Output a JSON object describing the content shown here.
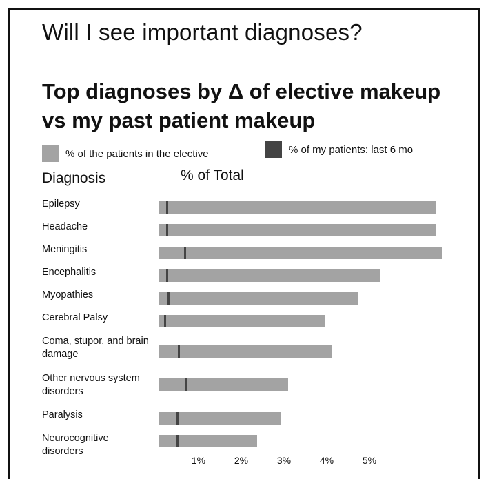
{
  "title": "Will I see important diagnoses?",
  "subtitle": "Top diagnoses by Δ of elective makeup vs my past patient makeup",
  "legend": {
    "elective_label": "% of the patients in the elective",
    "mine_label": "% of my patients: last 6 mo",
    "elective_color": "#a3a3a3",
    "mine_color": "#444444"
  },
  "columns": {
    "diagnosis": "Diagnosis",
    "percent": "% of Total"
  },
  "chart_data": {
    "type": "bar",
    "orientation": "horizontal",
    "title": "Top diagnoses by Δ of elective makeup vs my past patient makeup",
    "xlabel": "% of Total",
    "ylabel": "Diagnosis",
    "xlim": [
      0,
      6.6
    ],
    "x_ticks": [
      "1%",
      "2%",
      "3%",
      "4%",
      "5%"
    ],
    "x_tick_values": [
      1,
      2,
      3,
      4,
      5
    ],
    "grid": false,
    "legend_position": "top",
    "categories": [
      "Epilepsy",
      "Headache",
      "Meningitis",
      "Encephalitis",
      "Myopathies",
      "Cerebral Palsy",
      "Coma, stupor, and brain damage",
      "Other nervous system disorders",
      "Paralysis",
      "Neurocognitive disorders"
    ],
    "series": [
      {
        "name": "% of the patients in the elective",
        "values": [
          6.5,
          6.5,
          6.63,
          5.2,
          4.67,
          3.9,
          4.07,
          3.03,
          2.85,
          2.3
        ]
      },
      {
        "name": "% of my patients: last 6 mo",
        "values": [
          0.2,
          0.2,
          0.62,
          0.2,
          0.23,
          0.15,
          0.47,
          0.65,
          0.43,
          0.43
        ]
      }
    ]
  }
}
